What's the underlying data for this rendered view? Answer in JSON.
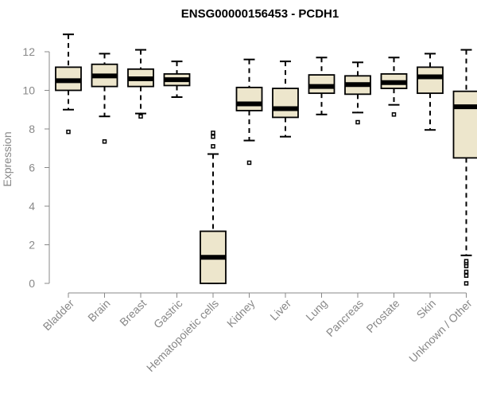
{
  "colors": {
    "box_fill": "#ede6cc",
    "axis": "#888888",
    "stroke": "#000000"
  },
  "chart_data": {
    "type": "boxplot",
    "title": "ENSG00000156453 - PCDH1",
    "ylabel": "Expression",
    "xlabel": "",
    "ylim": [
      0,
      12
    ],
    "yticks": [
      0,
      2,
      4,
      6,
      8,
      10,
      12
    ],
    "categories": [
      "Bladder",
      "Brain",
      "Breast",
      "Gastric",
      "Hematopoietic cells",
      "Kidney",
      "Liver",
      "Lung",
      "Pancreas",
      "Prostate",
      "Skin",
      "Unknown / Other"
    ],
    "boxes": [
      {
        "min": 9.0,
        "q1": 10.0,
        "median": 10.5,
        "q3": 11.2,
        "max": 12.9,
        "outliers": [
          7.85
        ]
      },
      {
        "min": 8.65,
        "q1": 10.2,
        "median": 10.75,
        "q3": 11.35,
        "max": 11.9,
        "outliers": [
          7.35
        ]
      },
      {
        "min": 8.8,
        "q1": 10.2,
        "median": 10.6,
        "q3": 11.1,
        "max": 12.1,
        "outliers": [
          8.65
        ]
      },
      {
        "min": 9.65,
        "q1": 10.25,
        "median": 10.55,
        "q3": 10.85,
        "max": 11.5,
        "outliers": []
      },
      {
        "min": 0.0,
        "q1": 0.0,
        "median": 1.35,
        "q3": 2.7,
        "max": 6.7,
        "outliers": [
          7.1,
          7.6,
          7.8
        ]
      },
      {
        "min": 7.4,
        "q1": 8.95,
        "median": 9.3,
        "q3": 10.15,
        "max": 11.6,
        "outliers": [
          6.25
        ]
      },
      {
        "min": 7.6,
        "q1": 8.6,
        "median": 9.05,
        "q3": 10.1,
        "max": 11.5,
        "outliers": []
      },
      {
        "min": 8.75,
        "q1": 9.85,
        "median": 10.2,
        "q3": 10.8,
        "max": 11.7,
        "outliers": []
      },
      {
        "min": 8.85,
        "q1": 9.8,
        "median": 10.3,
        "q3": 10.75,
        "max": 11.45,
        "outliers": [
          8.35
        ]
      },
      {
        "min": 9.25,
        "q1": 10.1,
        "median": 10.4,
        "q3": 10.85,
        "max": 11.7,
        "outliers": [
          8.75
        ]
      },
      {
        "min": 7.95,
        "q1": 9.85,
        "median": 10.7,
        "q3": 11.2,
        "max": 11.9,
        "outliers": []
      },
      {
        "min": 1.45,
        "q1": 6.5,
        "median": 9.15,
        "q3": 9.95,
        "max": 12.1,
        "outliers": [
          0.0,
          0.4,
          0.6,
          0.9,
          1.05,
          1.15
        ]
      }
    ]
  }
}
